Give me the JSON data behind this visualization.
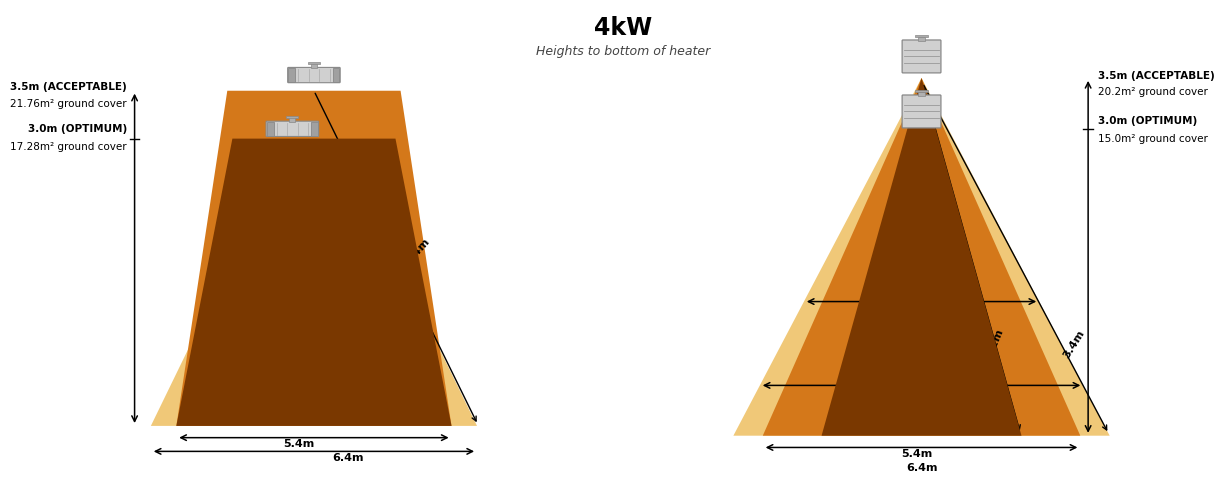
{
  "title": "4kW",
  "subtitle": "Heights to bottom of heater",
  "bg_color": "#ffffff",
  "left": {
    "label_accept": "3.5m (ACCEPTABLE)",
    "label_accept_sub": "21.76m² ground cover",
    "label_opt": "3.0m (OPTIMUM)",
    "label_opt_sub": "17.28m² ground cover",
    "color_outer": "#f0c878",
    "color_inner": "#d4781a",
    "color_dark": "#7a3800"
  },
  "right": {
    "label_accept": "3.5m (ACCEPTABLE)",
    "label_accept_sub": "20.2m² ground cover",
    "label_opt": "3.0m (OPTIMUM)",
    "label_opt_sub": "15.0m² ground cover",
    "color_outer": "#f0c878",
    "color_inner": "#d4781a",
    "color_dark": "#7a3800"
  }
}
